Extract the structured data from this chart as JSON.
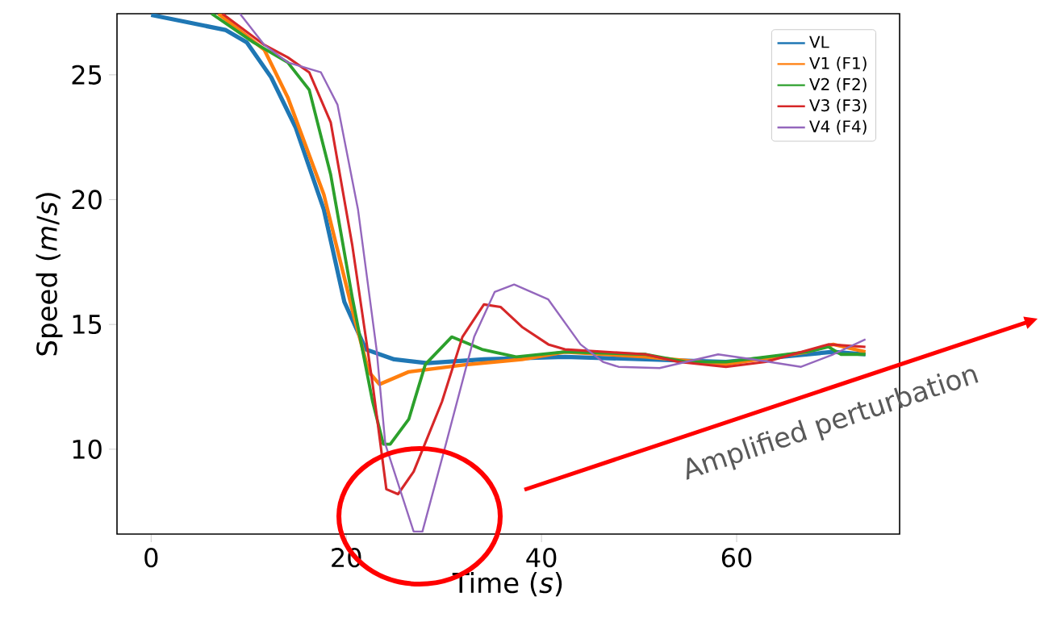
{
  "chart_data": {
    "type": "line",
    "xlabel": "Time (*s*)",
    "ylabel": "Speed (*m*/*s*)",
    "xlim": [
      -3.5,
      76.7
    ],
    "ylim": [
      6.6,
      27.45
    ],
    "xticks": [
      0,
      20,
      40,
      60
    ],
    "yticks": [
      10,
      15,
      20,
      25
    ],
    "legend": "top right",
    "annotations": [
      "Amplified perturbation"
    ],
    "series": [
      {
        "name": "VL",
        "color": "#1f77b4",
        "x": [
          0,
          3.8,
          7.6,
          9.8,
          12.3,
          14.8,
          17.7,
          19.8,
          22,
          24.9,
          28.3,
          34.1,
          42.4,
          58.9,
          69.9,
          73.2
        ],
        "values": [
          27.4,
          27.1,
          26.8,
          26.3,
          24.9,
          22.9,
          19.6,
          15.9,
          14.0,
          13.6,
          13.45,
          13.6,
          13.7,
          13.5,
          13.9,
          13.8
        ]
      },
      {
        "name": "V1 (F1)",
        "color": "#ff7f0e",
        "x": [
          6.9,
          11.6,
          14,
          17.7,
          20.6,
          22.3,
          23.4,
          26.4,
          32.5,
          38,
          42.4,
          50.7,
          58.9,
          67.2,
          69.9,
          73.2
        ],
        "values": [
          27.45,
          26,
          24.1,
          20.2,
          15.6,
          13.1,
          12.6,
          13.1,
          13.4,
          13.6,
          13.9,
          13.7,
          13.4,
          13.9,
          14.2,
          13.9
        ]
      },
      {
        "name": "V2 (F2)",
        "color": "#2ca02c",
        "x": [
          6.2,
          10.5,
          14,
          16.2,
          18.4,
          20.6,
          22.7,
          23.8,
          24.5,
          26.4,
          28.1,
          30.8,
          33.9,
          37.4,
          42.4,
          50.7,
          54.8,
          58.9,
          67.2,
          69.4,
          70.7,
          73.2
        ],
        "values": [
          27.45,
          26.3,
          25.5,
          24.4,
          21,
          16.1,
          11.9,
          10.2,
          10.2,
          11.2,
          13.4,
          14.5,
          14.0,
          13.7,
          13.9,
          13.8,
          13.5,
          13.5,
          13.9,
          14.1,
          13.8,
          13.8
        ]
      },
      {
        "name": "V3 (F3)",
        "color": "#d62728",
        "x": [
          7.3,
          11.6,
          14,
          16.2,
          18.4,
          20.6,
          22.7,
          24.1,
          25.3,
          26.9,
          29.8,
          31.9,
          34.1,
          35.8,
          38,
          40.7,
          42.4,
          50.7,
          54,
          58.9,
          63,
          69.4,
          73.2
        ],
        "values": [
          27.45,
          26.2,
          25.7,
          25.1,
          23.1,
          18.2,
          12.6,
          8.4,
          8.2,
          9.1,
          11.9,
          14.5,
          15.8,
          15.7,
          14.9,
          14.2,
          14.0,
          13.8,
          13.5,
          13.3,
          13.5,
          14.2,
          14.1
        ]
      },
      {
        "name": "V4 (F4)",
        "color": "#9467bd",
        "x": [
          9.1,
          11.6,
          14,
          17.4,
          19.1,
          21.2,
          23.1,
          24,
          26.9,
          27.8,
          30.2,
          33.1,
          35.2,
          37.2,
          40.7,
          44,
          46.3,
          47.9,
          52.1,
          58.1,
          61.7,
          66.6,
          69.9,
          73.2
        ],
        "values": [
          27.45,
          26.2,
          25.5,
          25.1,
          23.8,
          19.6,
          14.0,
          10.2,
          6.7,
          6.7,
          10.2,
          14.5,
          16.3,
          16.6,
          16.0,
          14.2,
          13.5,
          13.3,
          13.25,
          13.8,
          13.6,
          13.3,
          13.8,
          14.4
        ]
      }
    ]
  }
}
